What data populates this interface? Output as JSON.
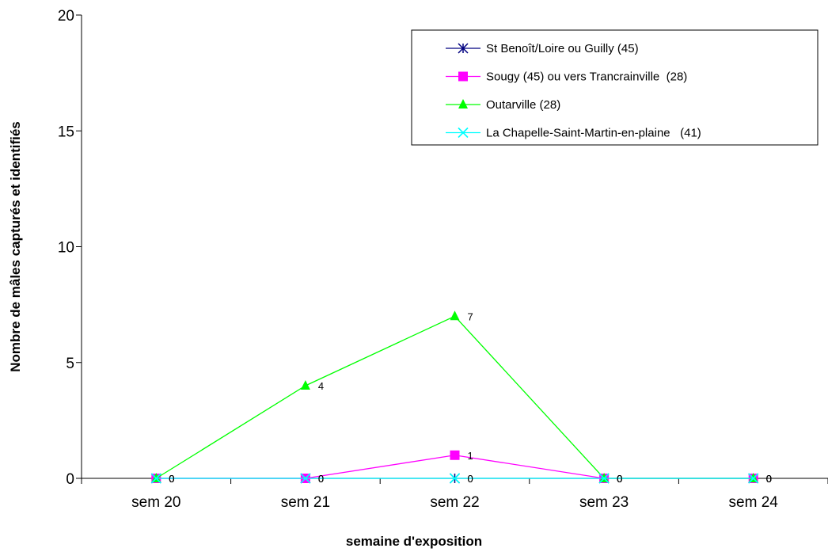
{
  "chart_data": {
    "type": "line",
    "title": "",
    "xlabel": "semaine d'exposition",
    "ylabel": "Nombre de mâles capturés et identifiés",
    "categories": [
      "sem 20",
      "sem 21",
      "sem 22",
      "sem 23",
      "sem 24"
    ],
    "ylim": [
      0,
      20
    ],
    "yticks": [
      "0",
      "5",
      "10",
      "15",
      "20"
    ],
    "grid": false,
    "legend_position": "top-right",
    "series": [
      {
        "name": "St Benoît/Loire ou Guilly (45)",
        "values": [
          0,
          0,
          0,
          0,
          0
        ],
        "labels": [
          "0",
          "0",
          "0",
          "0",
          "0"
        ],
        "color": "#000080",
        "marker": "asterisk"
      },
      {
        "name": "Sougy (45) ou vers Trancrainville  (28)",
        "values": [
          0,
          0,
          1,
          0,
          0
        ],
        "labels": [
          "0",
          "0",
          "1",
          "0",
          "0"
        ],
        "color": "#ff00ff",
        "marker": "square"
      },
      {
        "name": "Outarville (28)",
        "values": [
          0,
          4,
          7,
          0,
          0
        ],
        "labels": [
          "0",
          "4",
          "7",
          "0",
          "0"
        ],
        "color": "#00ff00",
        "marker": "triangle"
      },
      {
        "name": "La Chapelle-Saint-Martin-en-plaine   (41)",
        "values": [
          0,
          0,
          0,
          0,
          0
        ],
        "labels": [
          "0",
          "0",
          "0",
          "0",
          "0"
        ],
        "color": "#00ffff",
        "marker": "x"
      }
    ]
  }
}
